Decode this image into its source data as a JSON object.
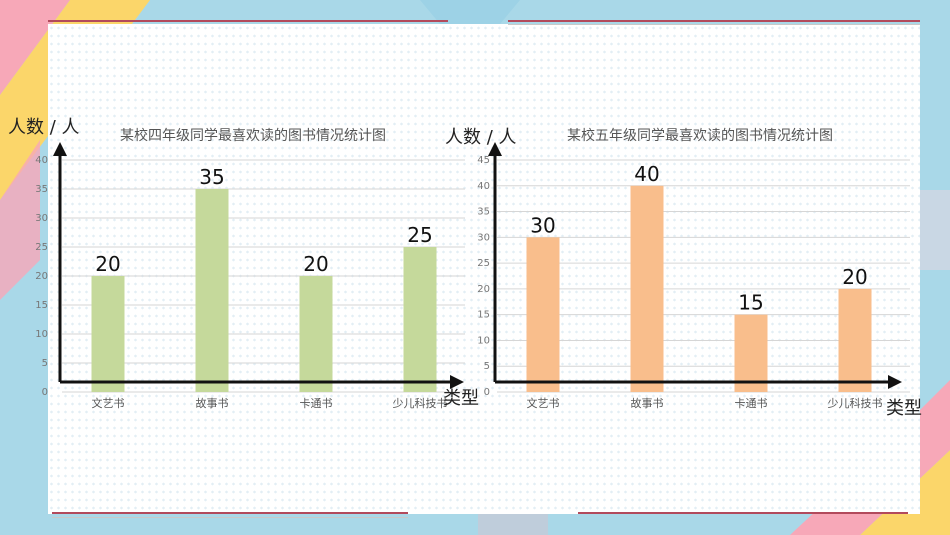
{
  "colors": {
    "left_bars": "#c5d99b",
    "right_bars": "#f9be8c"
  },
  "chart_data": [
    {
      "type": "bar",
      "title": "某校四年级同学最喜欢读的图书情况统计图",
      "ylabel": "人数 / 人",
      "xlabel": "类型",
      "categories": [
        "文艺书",
        "故事书",
        "卡通书",
        "少儿科技书"
      ],
      "values": [
        20,
        35,
        20,
        25
      ],
      "y_ticks": [
        "0",
        "5",
        "10",
        "15",
        "20",
        "25",
        "30",
        "35",
        "40"
      ],
      "ylim": [
        0,
        40
      ],
      "grid": true,
      "bar_color": "#c5d99b"
    },
    {
      "type": "bar",
      "title": "某校五年级同学最喜欢读的图书情况统计图",
      "ylabel": "人数 / 人",
      "xlabel": "类型",
      "categories": [
        "文艺书",
        "故事书",
        "卡通书",
        "少儿科技书"
      ],
      "values": [
        30,
        40,
        15,
        20
      ],
      "y_ticks": [
        "0",
        "5",
        "10",
        "15",
        "20",
        "25",
        "30",
        "35",
        "40",
        "45"
      ],
      "ylim": [
        0,
        45
      ],
      "grid": true,
      "bar_color": "#f9be8c"
    }
  ]
}
